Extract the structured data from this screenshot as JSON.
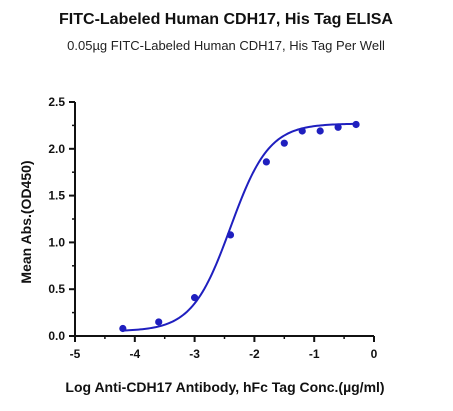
{
  "chart_data": {
    "type": "scatter",
    "title": "FITC-Labeled Human CDH17, His Tag ELISA",
    "subtitle": "0.05µg FITC-Labeled Human CDH17, His Tag Per Well",
    "xlabel": "Log Anti-CDH17 Antibody, hFc Tag Conc.(µg/ml)",
    "ylabel": "Mean Abs.(OD450)",
    "xlim": [
      -5,
      0
    ],
    "ylim": [
      0,
      2.5
    ],
    "xticks": [
      "-5",
      "-4",
      "-3",
      "-2",
      "-1",
      "0"
    ],
    "yticks": [
      "0.0",
      "0.5",
      "1.0",
      "1.5",
      "2.0",
      "2.5"
    ],
    "grid": false,
    "series": [
      {
        "color": "#1f1fbf",
        "marker": "circle",
        "fit": "four-parameter logistic curve",
        "points": [
          {
            "x": -4.2,
            "y": 0.08
          },
          {
            "x": -3.6,
            "y": 0.15
          },
          {
            "x": -3.0,
            "y": 0.41
          },
          {
            "x": -2.4,
            "y": 1.08
          },
          {
            "x": -1.8,
            "y": 1.86
          },
          {
            "x": -1.5,
            "y": 2.06
          },
          {
            "x": -1.2,
            "y": 2.19
          },
          {
            "x": -0.9,
            "y": 2.19
          },
          {
            "x": -0.6,
            "y": 2.23
          },
          {
            "x": -0.3,
            "y": 2.26
          }
        ]
      }
    ]
  }
}
